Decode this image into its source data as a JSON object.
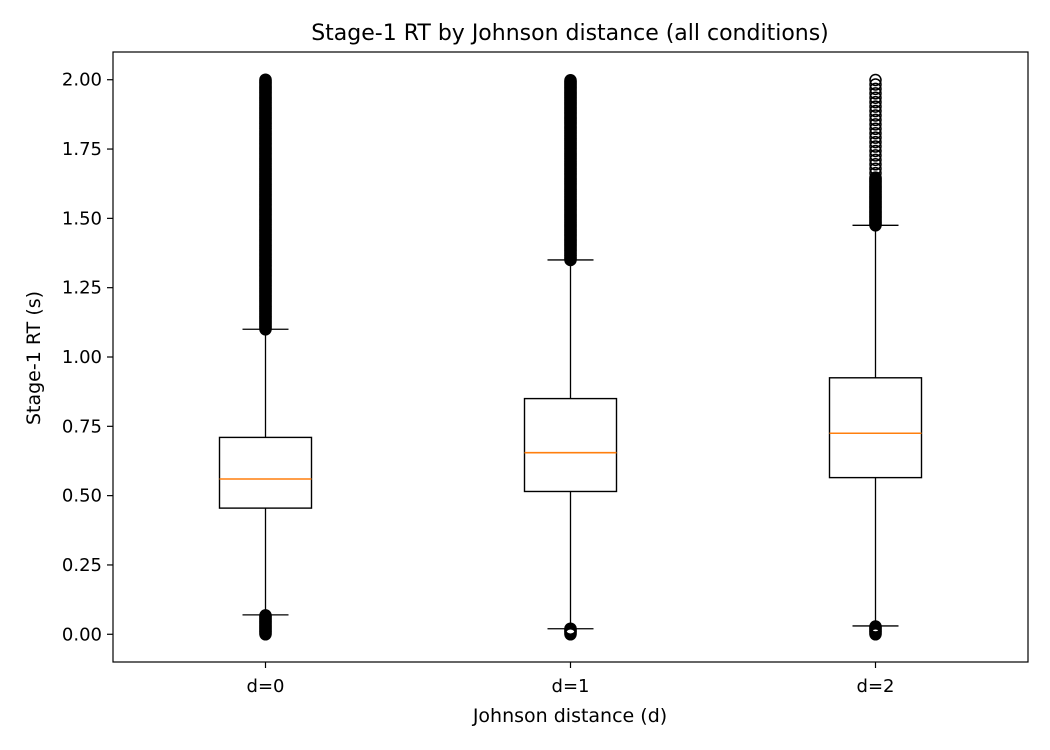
{
  "chart_data": {
    "type": "box",
    "title": "Stage-1 RT by Johnson distance (all conditions)",
    "xlabel": "Johnson distance (d)",
    "ylabel": "Stage-1 RT (s)",
    "ylim": [
      -0.1,
      2.1
    ],
    "yticks": [
      "0.00",
      "0.25",
      "0.50",
      "0.75",
      "1.00",
      "1.25",
      "1.50",
      "1.75",
      "2.00"
    ],
    "grid": false,
    "categories": [
      "d=0",
      "d=1",
      "d=2"
    ],
    "boxes": [
      {
        "label": "d=0",
        "whisker_low": 0.07,
        "q1": 0.455,
        "median": 0.56,
        "q3": 0.71,
        "whisker_high": 1.1,
        "outliers_low_range": [
          0.0,
          0.07
        ],
        "outliers_high_range": [
          1.1,
          2.0
        ]
      },
      {
        "label": "d=1",
        "whisker_low": 0.02,
        "q1": 0.515,
        "median": 0.655,
        "q3": 0.85,
        "whisker_high": 1.35,
        "outliers_low_range": [
          0.0,
          0.02
        ],
        "outliers_high_range": [
          1.35,
          2.0
        ]
      },
      {
        "label": "d=2",
        "whisker_low": 0.03,
        "q1": 0.565,
        "median": 0.725,
        "q3": 0.925,
        "whisker_high": 1.475,
        "outliers_low_range": [
          0.0,
          0.03
        ],
        "outliers_high_range": [
          1.475,
          2.0
        ],
        "outlier_sparse_above": 1.65
      }
    ],
    "colors": {
      "box": "#000000",
      "median": "#ff7f0e",
      "whisker": "#000000",
      "outlier": "#000000"
    }
  }
}
